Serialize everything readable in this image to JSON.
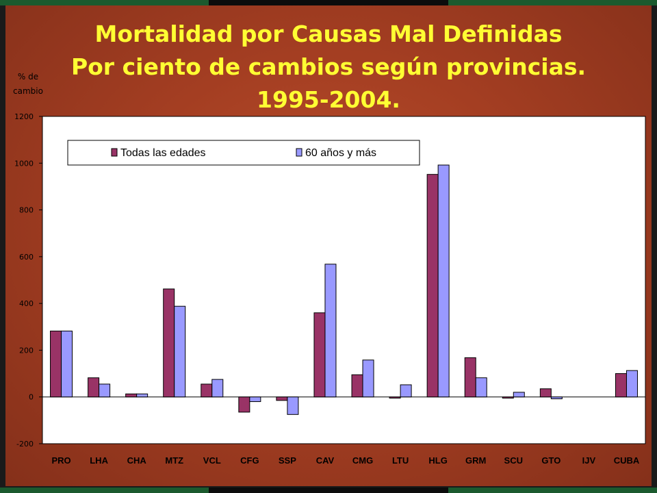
{
  "title_lines": [
    "Mortalidad por Causas Mal Definidas",
    "Por ciento de cambios según provincias.",
    "1995-2004."
  ],
  "ylabel_lines": [
    "% de",
    "cambio"
  ],
  "colors": {
    "series1": "#993366",
    "series2": "#9999ff",
    "title": "#ffff33",
    "background": "#a43e22",
    "plot_area": "#ffffff"
  },
  "chart_data": {
    "type": "bar",
    "title": "Mortalidad por Causas Mal Definidas Por ciento de cambios según provincias. 1995-2004.",
    "ylabel": "% de cambio",
    "xlabel": "",
    "ylim": [
      -200,
      1200
    ],
    "yticks": [
      -200,
      0,
      200,
      400,
      600,
      800,
      1000,
      1200
    ],
    "grid": false,
    "legend_position": "top-left",
    "categories": [
      "PRO",
      "LHA",
      "CHA",
      "MTZ",
      "VCL",
      "CFG",
      "SSP",
      "CAV",
      "CMG",
      "LTU",
      "HLG",
      "GRM",
      "SCU",
      "GTO",
      "IJV",
      "CUBA"
    ],
    "series": [
      {
        "name": "Todas las edades",
        "values": [
          282,
          82,
          13,
          462,
          55,
          -65,
          -15,
          360,
          95,
          -5,
          952,
          168,
          -5,
          35,
          0,
          100
        ]
      },
      {
        "name": "60 años y más",
        "values": [
          282,
          55,
          13,
          388,
          75,
          -20,
          -75,
          568,
          158,
          52,
          992,
          82,
          20,
          -8,
          0,
          113
        ]
      }
    ]
  }
}
